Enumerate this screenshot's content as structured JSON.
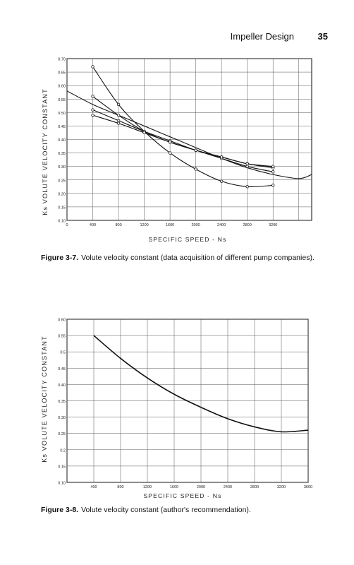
{
  "header": {
    "title": "Impeller Design",
    "page_number": "35"
  },
  "figures": [
    {
      "caption_label": "Figure 3-7.",
      "caption_text": "Volute velocity constant (data acquisition of different pump companies).",
      "ylabel": "Ks VOLUTE VELOCITY CONSTANT",
      "xlabel": "SPECIFIC SPEED - Ns",
      "y_ticks": [
        "0.10",
        "0.15",
        "0.20",
        "0.25",
        "0.30",
        "0.35",
        "0.40",
        "0.45",
        "0.50",
        "0.55",
        "0.60",
        "0.65",
        "0.70"
      ],
      "x_ticks": [
        "0",
        "400",
        "800",
        "1200",
        "1600",
        "2000",
        "2400",
        "2800",
        "3200"
      ]
    },
    {
      "caption_label": "Figure 3-8.",
      "caption_text": "Volute velocity constant (author's recommendation).",
      "ylabel": "Ks VOLUTE VELOCITY CONSTANT",
      "xlabel": "SPECIFIC SPEED - Ns",
      "y_ticks": [
        "0.10",
        "0.15",
        "0.2",
        "0.25",
        "0.30",
        "0.35",
        "0.40",
        "0.45",
        "0.5",
        "0.55",
        "0.60"
      ],
      "x_ticks": [
        "400",
        "800",
        "1200",
        "1600",
        "2000",
        "2400",
        "2800",
        "3200",
        "3600"
      ]
    }
  ],
  "chart_data": [
    {
      "type": "line",
      "xlim": [
        0,
        3800
      ],
      "ylim": [
        0.1,
        0.7
      ],
      "grid": true,
      "series": [
        {
          "x": [
            400,
            800,
            1200,
            1600,
            2000,
            2400,
            2800,
            3200
          ],
          "y": [
            0.67,
            0.53,
            0.43,
            0.35,
            0.29,
            0.245,
            0.225,
            0.23
          ],
          "markers": true
        },
        {
          "x": [
            0,
            400,
            800,
            1200,
            1600,
            2000,
            2400,
            2800,
            3200,
            3600,
            3800
          ],
          "y": [
            0.58,
            0.53,
            0.49,
            0.45,
            0.41,
            0.37,
            0.33,
            0.295,
            0.27,
            0.255,
            0.27
          ],
          "markers": false
        },
        {
          "x": [
            400,
            800,
            1200,
            1600,
            2000,
            2400,
            2800,
            3200
          ],
          "y": [
            0.56,
            0.49,
            0.43,
            0.39,
            0.36,
            0.335,
            0.31,
            0.295
          ],
          "markers": true
        },
        {
          "x": [
            400,
            800,
            1200,
            1600,
            2000,
            2400,
            2800,
            3200
          ],
          "y": [
            0.51,
            0.47,
            0.43,
            0.395,
            0.36,
            0.33,
            0.3,
            0.28
          ],
          "markers": true
        },
        {
          "x": [
            400,
            800,
            1200,
            1600,
            2000,
            2400,
            2800,
            3200
          ],
          "y": [
            0.49,
            0.46,
            0.425,
            0.39,
            0.36,
            0.335,
            0.31,
            0.3
          ],
          "markers": true
        }
      ]
    },
    {
      "type": "line",
      "xlim": [
        0,
        3600
      ],
      "ylim": [
        0.1,
        0.6
      ],
      "grid": true,
      "series": [
        {
          "x": [
            400,
            800,
            1200,
            1600,
            2000,
            2400,
            2800,
            3200,
            3600
          ],
          "y": [
            0.55,
            0.48,
            0.42,
            0.37,
            0.33,
            0.295,
            0.27,
            0.255,
            0.26
          ],
          "markers": false
        }
      ]
    }
  ]
}
